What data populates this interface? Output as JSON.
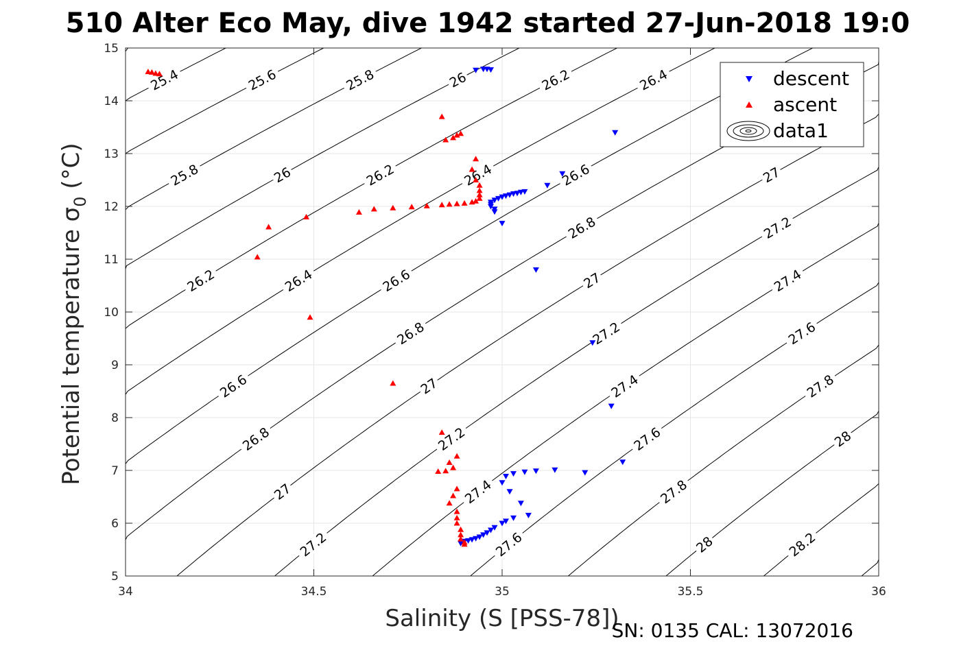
{
  "chart_data": {
    "type": "scatter",
    "title": "510 Alter Eco May, dive 1942 started 27-Jun-2018 19:0",
    "xlabel": "Salinity (S [PSS-78])",
    "ylabel_main": "Potential temperature σ",
    "ylabel_sub": "0",
    "ylabel_unit": " (°C)",
    "xlim": [
      34,
      36
    ],
    "ylim": [
      5,
      15
    ],
    "xticks": [
      "34",
      "34.5",
      "35",
      "35.5",
      "36"
    ],
    "yticks": [
      "5",
      "6",
      "7",
      "8",
      "9",
      "10",
      "11",
      "12",
      "13",
      "14",
      "15"
    ],
    "grid": true,
    "legend_position": "top-right",
    "legend": [
      "descent",
      "ascent",
      "data1"
    ],
    "footer_note": "SN: 0135  CAL: 13072016",
    "colors": {
      "descent": "#0000ff",
      "ascent": "#ff0000",
      "contour": "#000000"
    },
    "series": [
      {
        "name": "descent",
        "marker": "triangle-down",
        "points": [
          [
            34.93,
            14.58
          ],
          [
            34.95,
            14.6
          ],
          [
            34.96,
            14.6
          ],
          [
            34.97,
            14.59
          ],
          [
            35.3,
            13.4
          ],
          [
            35.16,
            12.62
          ],
          [
            35.12,
            12.4
          ],
          [
            35.06,
            12.28
          ],
          [
            35.05,
            12.27
          ],
          [
            35.04,
            12.25
          ],
          [
            35.03,
            12.24
          ],
          [
            35.02,
            12.22
          ],
          [
            35.01,
            12.2
          ],
          [
            35.0,
            12.18
          ],
          [
            34.99,
            12.15
          ],
          [
            34.98,
            12.12
          ],
          [
            34.97,
            12.08
          ],
          [
            34.97,
            12.04
          ],
          [
            34.97,
            12.0
          ],
          [
            34.98,
            11.95
          ],
          [
            34.98,
            11.9
          ],
          [
            35.0,
            11.68
          ],
          [
            35.09,
            10.8
          ],
          [
            35.24,
            9.42
          ],
          [
            35.29,
            8.22
          ],
          [
            35.32,
            7.16
          ],
          [
            35.22,
            6.96
          ],
          [
            35.14,
            7.01
          ],
          [
            35.09,
            6.99
          ],
          [
            35.06,
            6.97
          ],
          [
            35.03,
            6.94
          ],
          [
            35.01,
            6.89
          ],
          [
            35.0,
            6.77
          ],
          [
            35.02,
            6.6
          ],
          [
            35.05,
            6.38
          ],
          [
            35.07,
            6.15
          ],
          [
            35.03,
            6.1
          ],
          [
            35.01,
            6.04
          ],
          [
            35.0,
            6.0
          ],
          [
            34.98,
            5.92
          ],
          [
            34.97,
            5.87
          ],
          [
            34.96,
            5.82
          ],
          [
            34.95,
            5.78
          ],
          [
            34.94,
            5.74
          ],
          [
            34.93,
            5.71
          ],
          [
            34.92,
            5.69
          ],
          [
            34.91,
            5.67
          ],
          [
            34.9,
            5.66
          ],
          [
            34.89,
            5.62
          ]
        ]
      },
      {
        "name": "ascent",
        "marker": "triangle-up",
        "points": [
          [
            34.06,
            14.55
          ],
          [
            34.07,
            14.54
          ],
          [
            34.08,
            14.52
          ],
          [
            34.09,
            14.51
          ],
          [
            34.84,
            13.7
          ],
          [
            34.85,
            13.26
          ],
          [
            34.87,
            13.3
          ],
          [
            34.88,
            13.35
          ],
          [
            34.89,
            13.38
          ],
          [
            34.93,
            12.9
          ],
          [
            34.92,
            12.7
          ],
          [
            34.93,
            12.5
          ],
          [
            34.94,
            12.4
          ],
          [
            34.94,
            12.3
          ],
          [
            34.94,
            12.22
          ],
          [
            34.94,
            12.15
          ],
          [
            34.93,
            12.1
          ],
          [
            34.92,
            12.08
          ],
          [
            34.9,
            12.06
          ],
          [
            34.88,
            12.05
          ],
          [
            34.86,
            12.04
          ],
          [
            34.84,
            12.03
          ],
          [
            34.8,
            12.01
          ],
          [
            34.76,
            11.99
          ],
          [
            34.71,
            11.97
          ],
          [
            34.66,
            11.95
          ],
          [
            34.62,
            11.89
          ],
          [
            34.48,
            11.8
          ],
          [
            34.38,
            11.61
          ],
          [
            34.35,
            11.04
          ],
          [
            34.49,
            9.9
          ],
          [
            34.71,
            8.65
          ],
          [
            34.84,
            7.72
          ],
          [
            34.88,
            7.27
          ],
          [
            34.86,
            7.15
          ],
          [
            34.87,
            7.05
          ],
          [
            34.85,
            6.99
          ],
          [
            34.83,
            6.98
          ],
          [
            34.88,
            6.65
          ],
          [
            34.87,
            6.52
          ],
          [
            34.86,
            6.38
          ],
          [
            34.88,
            6.22
          ],
          [
            34.88,
            6.1
          ],
          [
            34.88,
            6.0
          ],
          [
            34.89,
            5.88
          ],
          [
            34.89,
            5.78
          ],
          [
            34.89,
            5.7
          ],
          [
            34.9,
            5.64
          ],
          [
            34.9,
            5.6
          ]
        ]
      }
    ],
    "contour_levels": [
      "25.4",
      "25.6",
      "25.8",
      "26",
      "26.2",
      "26.4",
      "26.6",
      "26.8",
      "27",
      "27.2",
      "27.4",
      "27.6",
      "27.8",
      "28",
      "28.2"
    ]
  }
}
